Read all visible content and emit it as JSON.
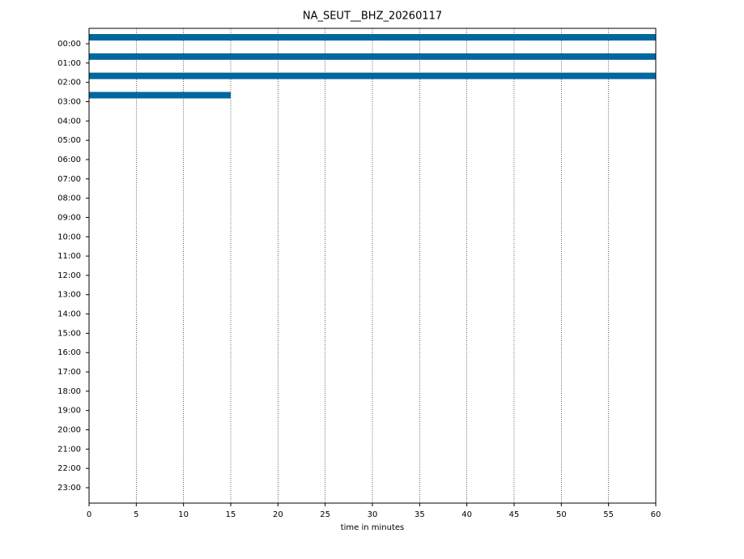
{
  "chart_data": {
    "type": "dayplot",
    "title": "NA_SEUT__BHZ_20260117",
    "xlabel": "time in minutes",
    "xlim": [
      0,
      60
    ],
    "xticks": [
      0,
      5,
      10,
      15,
      20,
      25,
      30,
      35,
      40,
      45,
      50,
      55,
      60
    ],
    "grid": true,
    "color": "#00689e",
    "categories": [
      "00:00",
      "01:00",
      "02:00",
      "03:00",
      "04:00",
      "05:00",
      "06:00",
      "07:00",
      "08:00",
      "09:00",
      "10:00",
      "11:00",
      "12:00",
      "13:00",
      "14:00",
      "15:00",
      "16:00",
      "17:00",
      "18:00",
      "19:00",
      "20:00",
      "21:00",
      "22:00",
      "23:00"
    ],
    "spans": [
      [
        0,
        60
      ],
      [
        0,
        60
      ],
      [
        0,
        60
      ],
      [
        0,
        15
      ],
      null,
      null,
      null,
      null,
      null,
      null,
      null,
      null,
      null,
      null,
      null,
      null,
      null,
      null,
      null,
      null,
      null,
      null,
      null,
      null
    ]
  }
}
